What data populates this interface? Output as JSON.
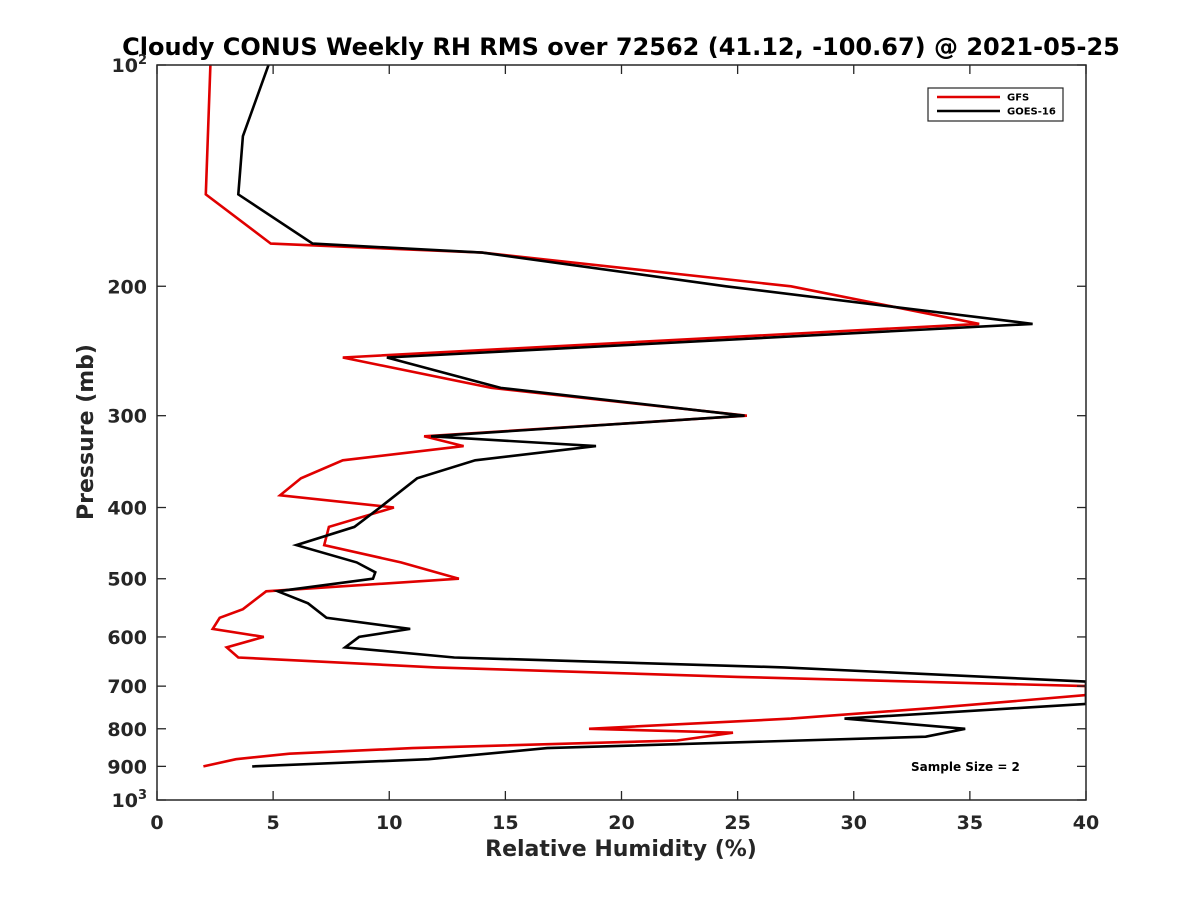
{
  "chart_data": {
    "type": "line",
    "title": "Cloudy CONUS Weekly RH RMS over 72562 (41.12, -100.67) @ 2021-05-25",
    "xlabel": "Relative Humidity (%)",
    "ylabel": "Pressure (mb)",
    "xlim": [
      0,
      40
    ],
    "ylim": [
      100,
      1000
    ],
    "yscale": "log",
    "y_reversed": true,
    "grid": false,
    "legend_position": "top-right",
    "xticks": [
      0,
      5,
      10,
      15,
      20,
      25,
      30,
      35,
      40
    ],
    "xtick_labels": [
      "0",
      "5",
      "10",
      "15",
      "20",
      "25",
      "30",
      "35",
      "40"
    ],
    "yticks": [
      100,
      200,
      300,
      400,
      500,
      600,
      700,
      800,
      900,
      1000
    ],
    "ytick_labels": [
      {
        "base": "10",
        "exp": "2"
      },
      {
        "base": "200",
        "exp": ""
      },
      {
        "base": "300",
        "exp": ""
      },
      {
        "base": "400",
        "exp": ""
      },
      {
        "base": "500",
        "exp": ""
      },
      {
        "base": "600",
        "exp": ""
      },
      {
        "base": "700",
        "exp": ""
      },
      {
        "base": "800",
        "exp": ""
      },
      {
        "base": "900",
        "exp": ""
      },
      {
        "base": "10",
        "exp": "3"
      }
    ],
    "annotation": "Sample Size = 2",
    "series": [
      {
        "name": "GFS",
        "color": "#e00000",
        "points": [
          [
            2.3,
            100
          ],
          [
            2.1,
            150
          ],
          [
            4.9,
            175
          ],
          [
            14.0,
            180
          ],
          [
            27.3,
            200
          ],
          [
            35.4,
            225
          ],
          [
            8.0,
            250
          ],
          [
            14.4,
            275
          ],
          [
            25.4,
            300
          ],
          [
            11.5,
            320
          ],
          [
            13.2,
            330
          ],
          [
            8.0,
            345
          ],
          [
            6.2,
            365
          ],
          [
            5.3,
            385
          ],
          [
            10.2,
            400
          ],
          [
            7.4,
            425
          ],
          [
            7.2,
            450
          ],
          [
            10.5,
            475
          ],
          [
            13.0,
            500
          ],
          [
            4.7,
            520
          ],
          [
            3.7,
            550
          ],
          [
            2.7,
            565
          ],
          [
            2.4,
            585
          ],
          [
            4.6,
            600
          ],
          [
            3.0,
            620
          ],
          [
            3.5,
            640
          ],
          [
            12.0,
            660
          ],
          [
            25.0,
            680
          ],
          [
            40.0,
            700
          ],
          [
            40.0,
            720
          ],
          [
            33.3,
            750
          ],
          [
            27.3,
            775
          ],
          [
            18.6,
            800
          ],
          [
            24.8,
            810
          ],
          [
            22.4,
            830
          ],
          [
            11.0,
            850
          ],
          [
            5.7,
            865
          ],
          [
            3.4,
            880
          ],
          [
            2.0,
            900
          ]
        ]
      },
      {
        "name": "GOES-16",
        "color": "#000000",
        "points": [
          [
            4.8,
            100
          ],
          [
            3.7,
            125
          ],
          [
            3.5,
            150
          ],
          [
            6.7,
            175
          ],
          [
            14.0,
            180
          ],
          [
            24.5,
            200
          ],
          [
            37.7,
            225
          ],
          [
            9.9,
            250
          ],
          [
            14.8,
            275
          ],
          [
            25.3,
            300
          ],
          [
            11.8,
            320
          ],
          [
            18.9,
            330
          ],
          [
            13.7,
            345
          ],
          [
            11.2,
            365
          ],
          [
            9.6,
            400
          ],
          [
            8.5,
            425
          ],
          [
            6.0,
            450
          ],
          [
            8.6,
            475
          ],
          [
            9.4,
            490
          ],
          [
            9.3,
            500
          ],
          [
            5.2,
            520
          ],
          [
            6.5,
            540
          ],
          [
            7.3,
            565
          ],
          [
            10.9,
            585
          ],
          [
            8.7,
            600
          ],
          [
            8.1,
            620
          ],
          [
            12.8,
            640
          ],
          [
            27.0,
            660
          ],
          [
            40.0,
            690
          ],
          [
            40.0,
            740
          ],
          [
            29.6,
            775
          ],
          [
            34.8,
            800
          ],
          [
            33.1,
            820
          ],
          [
            16.8,
            850
          ],
          [
            11.7,
            880
          ],
          [
            4.1,
            900
          ]
        ]
      }
    ]
  }
}
